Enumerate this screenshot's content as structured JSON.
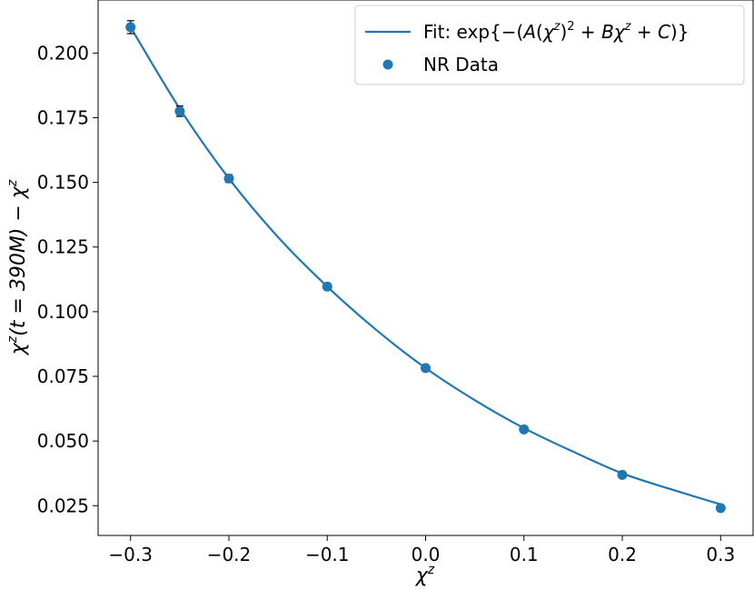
{
  "chart_data": {
    "type": "scatter",
    "title": "",
    "xlabel": "χ^z",
    "ylabel": "χ^z(t = 390M) − χ^z",
    "xlim": [
      -0.333,
      0.333
    ],
    "ylim": [
      0.0135,
      0.2205
    ],
    "x_ticks": [
      -0.3,
      -0.2,
      -0.1,
      0.0,
      0.1,
      0.2,
      0.3
    ],
    "x_tick_labels": [
      "−0.3",
      "−0.2",
      "−0.1",
      "0.0",
      "0.1",
      "0.2",
      "0.3"
    ],
    "y_ticks": [
      0.025,
      0.05,
      0.075,
      0.1,
      0.125,
      0.15,
      0.175,
      0.2
    ],
    "y_tick_labels": [
      "0.025",
      "0.050",
      "0.075",
      "0.100",
      "0.125",
      "0.150",
      "0.175",
      "0.200"
    ],
    "grid": false,
    "legend_position": "top-right",
    "series": [
      {
        "name": "NR Data",
        "kind": "points_with_errorbars",
        "color": "#1f77b4",
        "x": [
          -0.3,
          -0.25,
          -0.2,
          -0.1,
          0.0,
          0.1,
          0.2,
          0.3
        ],
        "y": [
          0.21,
          0.1775,
          0.1515,
          0.1097,
          0.0782,
          0.0545,
          0.0369,
          0.0241
        ],
        "yerr": [
          0.0025,
          0.002,
          0.0015,
          0.0012,
          0.001,
          0.0008,
          0.0006,
          0.0004
        ]
      },
      {
        "name": "Fit: exp{−(A(χ^z)^2 + Bχ^z + C)}",
        "kind": "line",
        "color": "#1f77b4",
        "x": [
          -0.3,
          -0.25,
          -0.2,
          -0.15,
          -0.1,
          -0.05,
          0.0,
          0.05,
          0.1,
          0.15,
          0.2,
          0.25,
          0.3
        ],
        "y": [
          0.21,
          0.1785,
          0.1515,
          0.1288,
          0.1097,
          0.0929,
          0.0782,
          0.0658,
          0.055,
          0.0459,
          0.0375,
          0.0313,
          0.0255
        ]
      }
    ]
  },
  "legend": {
    "fit_prefix": "Fit: exp{−(",
    "fit_a": "A",
    "fit_chi1": "χ",
    "fit_z1": "z",
    "fit_pow": "2",
    "fit_plus1": " + ",
    "fit_b": "B",
    "fit_chi2": "χ",
    "fit_z2": "z",
    "fit_plus2": " + ",
    "fit_c": "C",
    "fit_suffix": ")}",
    "data_label": "NR Data"
  },
  "axes_text": {
    "xlabel_chi": "χ",
    "xlabel_z": "z",
    "ylabel_chi1": "χ",
    "ylabel_z1": "z",
    "ylabel_mid": "(t = 390M) − ",
    "ylabel_chi2": "χ",
    "ylabel_z2": "z"
  }
}
